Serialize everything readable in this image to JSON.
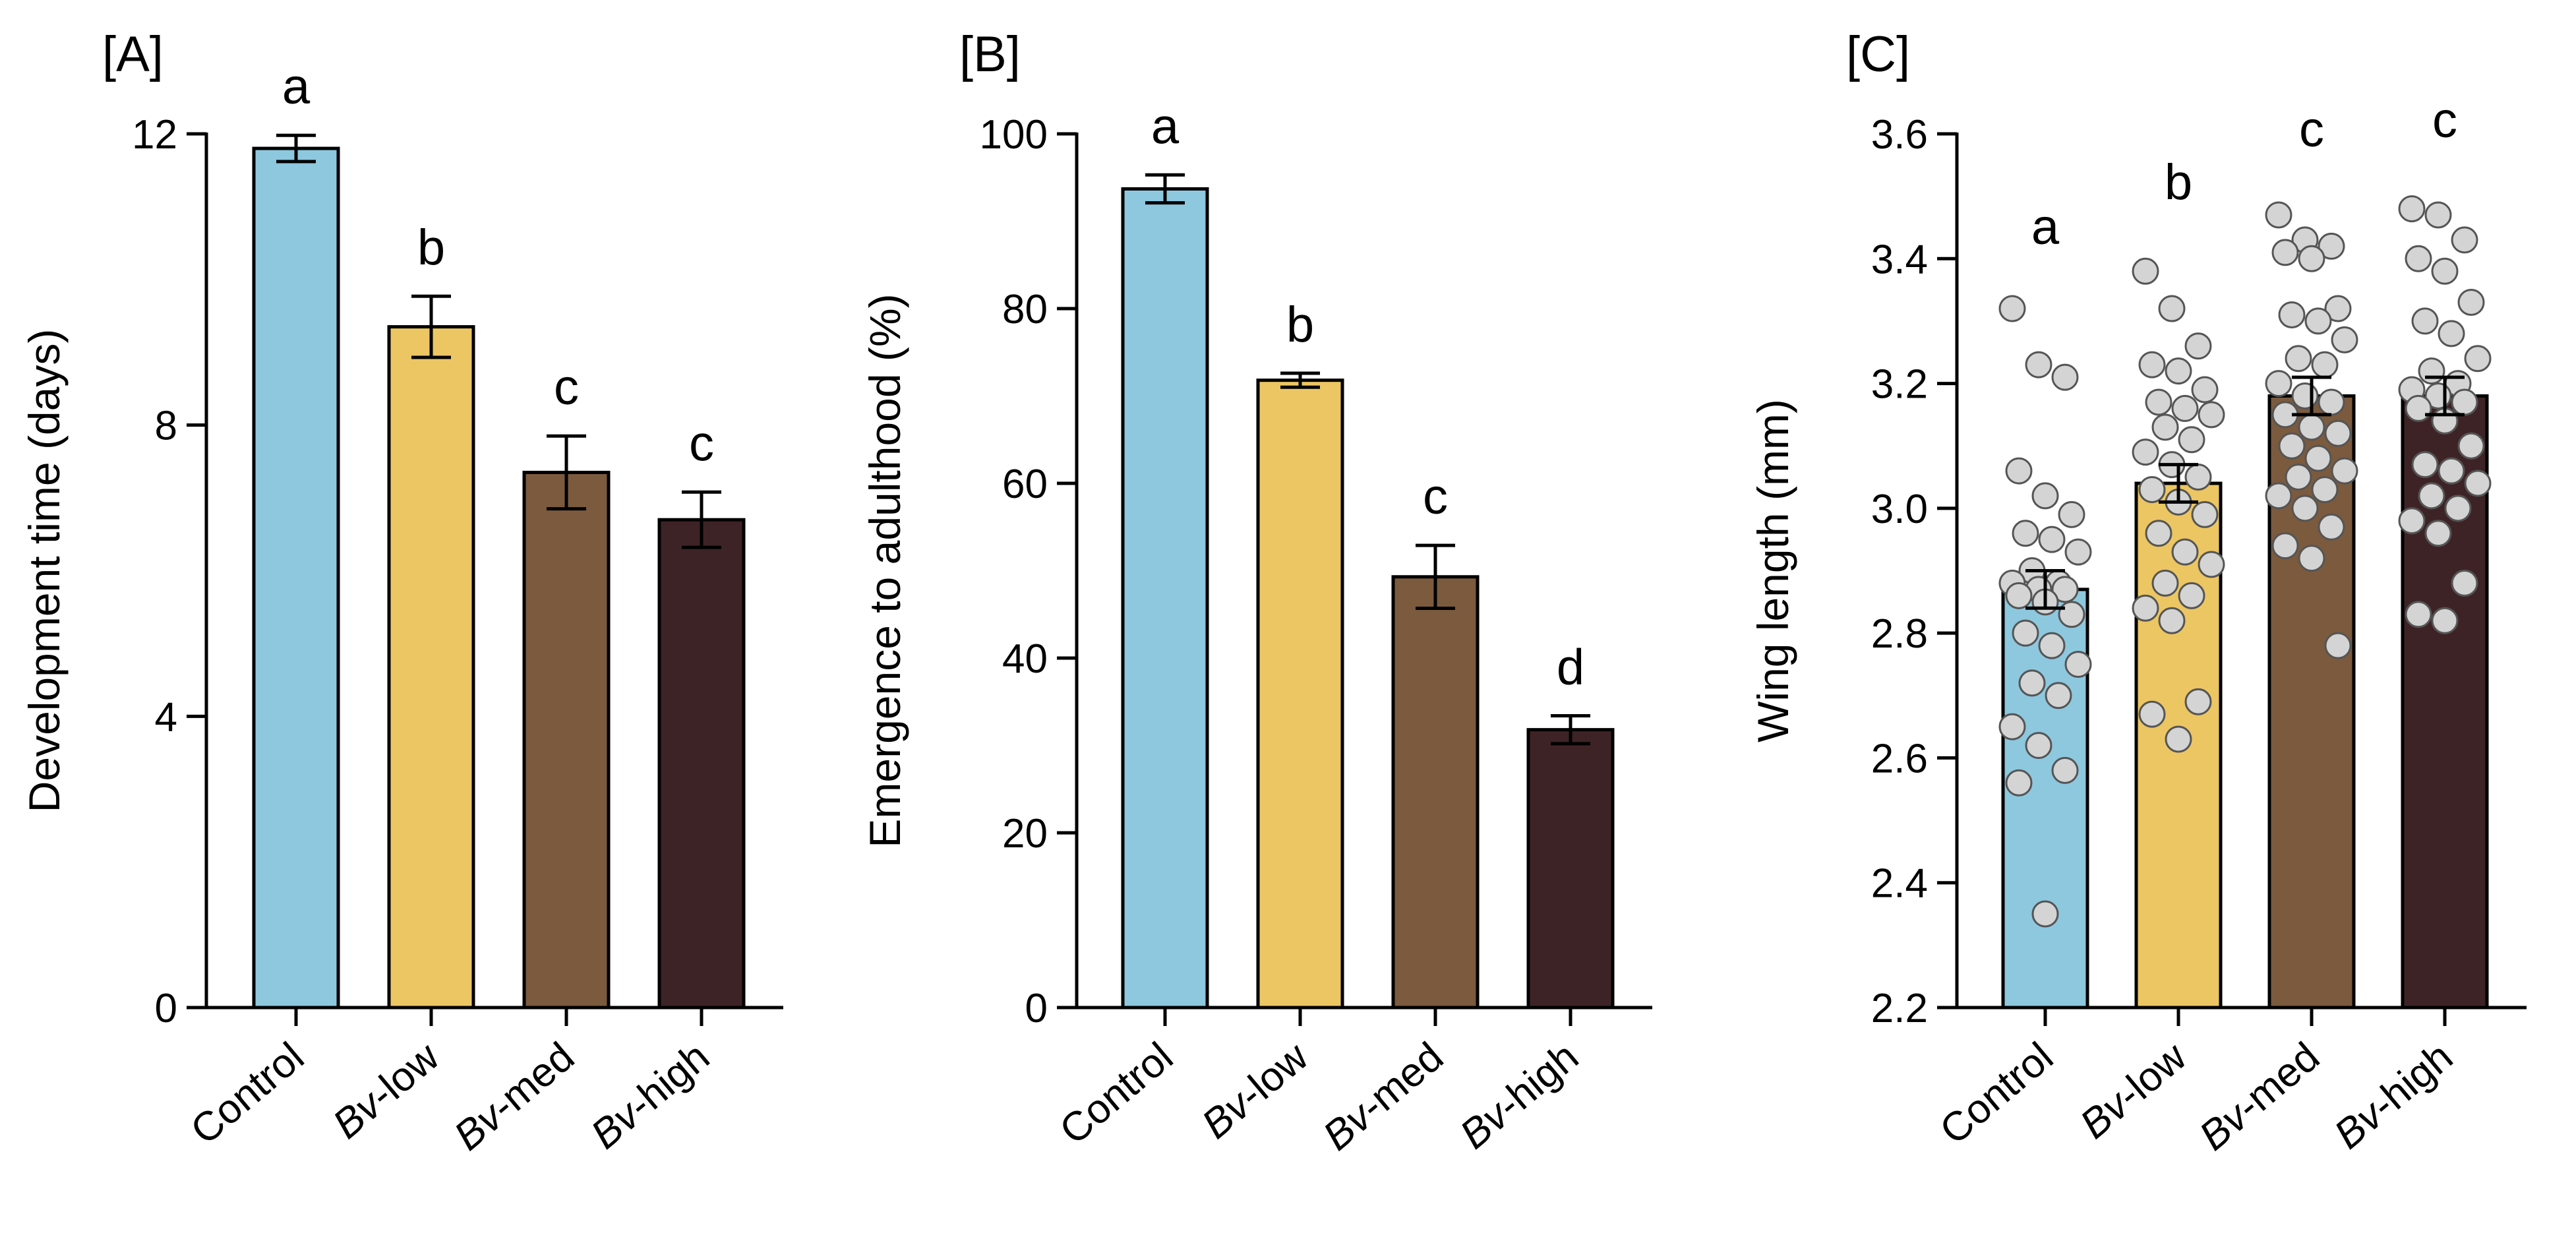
{
  "colors": {
    "Control": "#8dc8df",
    "Bv-low": "#ecc663",
    "Bv-med": "#7b5a3e",
    "Bv-high": "#3e2326",
    "dot_fill": "#d4d4d4",
    "dot_stroke": "#555555",
    "axis": "#000000"
  },
  "chart_data": [
    {
      "type": "bar",
      "panel_label": "[A]",
      "ylabel": "Development time (days)",
      "categories": [
        {
          "prefix": "",
          "suffix": "Control"
        },
        {
          "prefix": "Bv",
          "suffix": "-low"
        },
        {
          "prefix": "Bv",
          "suffix": "-med"
        },
        {
          "prefix": "Bv",
          "suffix": "-high"
        }
      ],
      "category_keys": [
        "Control",
        "Bv-low",
        "Bv-med",
        "Bv-high"
      ],
      "values": [
        11.8,
        9.35,
        7.35,
        6.7
      ],
      "errors": [
        0.18,
        0.42,
        0.5,
        0.38
      ],
      "significance": [
        "a",
        "b",
        "c",
        "c"
      ],
      "ylim": [
        0,
        12
      ],
      "yticks": [
        0,
        4,
        8,
        12
      ]
    },
    {
      "type": "bar",
      "panel_label": "[B]",
      "ylabel": "Emergence to adulthood (%)",
      "categories": [
        {
          "prefix": "",
          "suffix": "Control"
        },
        {
          "prefix": "Bv",
          "suffix": "-low"
        },
        {
          "prefix": "Bv",
          "suffix": "-med"
        },
        {
          "prefix": "Bv",
          "suffix": "-high"
        }
      ],
      "category_keys": [
        "Control",
        "Bv-low",
        "Bv-med",
        "Bv-high"
      ],
      "values": [
        93.7,
        71.8,
        49.3,
        31.8
      ],
      "errors": [
        1.6,
        0.8,
        3.6,
        1.6
      ],
      "significance": [
        "a",
        "b",
        "c",
        "d"
      ],
      "ylim": [
        0,
        100
      ],
      "yticks": [
        0,
        20,
        40,
        60,
        80,
        100
      ]
    },
    {
      "type": "bar",
      "panel_label": "[C]",
      "ylabel": "Wing length (mm)",
      "categories": [
        {
          "prefix": "",
          "suffix": "Control"
        },
        {
          "prefix": "Bv",
          "suffix": "-low"
        },
        {
          "prefix": "Bv",
          "suffix": "-med"
        },
        {
          "prefix": "Bv",
          "suffix": "-high"
        }
      ],
      "category_keys": [
        "Control",
        "Bv-low",
        "Bv-med",
        "Bv-high"
      ],
      "values": [
        2.87,
        3.04,
        3.18,
        3.18
      ],
      "errors": [
        0.03,
        0.03,
        0.03,
        0.03
      ],
      "significance": [
        "a",
        "b",
        "c",
        "c"
      ],
      "ylim": [
        2.2,
        3.6
      ],
      "yticks": [
        "2.2",
        "2.4",
        "2.6",
        "2.8",
        "3.0",
        "3.2",
        "3.4",
        "3.6"
      ],
      "points": [
        [
          3.32,
          3.23,
          3.21,
          3.06,
          3.02,
          2.99,
          2.96,
          2.95,
          2.93,
          2.9,
          2.88,
          2.88,
          2.87,
          2.87,
          2.86,
          2.85,
          2.83,
          2.8,
          2.78,
          2.75,
          2.72,
          2.7,
          2.65,
          2.62,
          2.58,
          2.56,
          2.35
        ],
        [
          3.38,
          3.32,
          3.26,
          3.23,
          3.22,
          3.19,
          3.17,
          3.16,
          3.15,
          3.13,
          3.11,
          3.09,
          3.07,
          3.05,
          3.03,
          3.01,
          2.99,
          2.96,
          2.93,
          2.91,
          2.88,
          2.86,
          2.84,
          2.82,
          2.69,
          2.67,
          2.63
        ],
        [
          3.47,
          3.43,
          3.42,
          3.41,
          3.4,
          3.32,
          3.31,
          3.3,
          3.27,
          3.24,
          3.23,
          3.2,
          3.18,
          3.17,
          3.15,
          3.13,
          3.12,
          3.1,
          3.08,
          3.06,
          3.05,
          3.03,
          3.02,
          3.0,
          2.97,
          2.94,
          2.92,
          2.78
        ],
        [
          3.48,
          3.47,
          3.43,
          3.4,
          3.38,
          3.33,
          3.3,
          3.28,
          3.24,
          3.22,
          3.2,
          3.19,
          3.18,
          3.17,
          3.16,
          3.14,
          3.1,
          3.07,
          3.06,
          3.04,
          3.02,
          3.0,
          2.98,
          2.96,
          2.88,
          2.83,
          2.82
        ]
      ]
    }
  ]
}
